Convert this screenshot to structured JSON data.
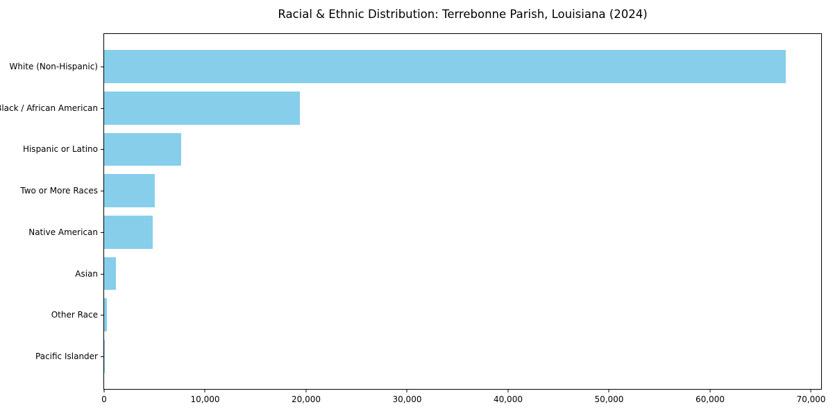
{
  "title": "Racial & Ethnic Distribution: Terrebonne Parish, Louisiana (2024)",
  "chart_data": {
    "type": "bar",
    "orientation": "horizontal",
    "title": "Racial & Ethnic Distribution: Terrebonne Parish, Louisiana (2024)",
    "xlabel": "",
    "ylabel": "",
    "categories": [
      "White (Non-Hispanic)",
      "Black / African American",
      "Hispanic or Latino",
      "Two or More Races",
      "Native American",
      "Asian",
      "Other Race",
      "Pacific Islander"
    ],
    "values": [
      67500,
      19400,
      7600,
      5000,
      4800,
      1200,
      300,
      50
    ],
    "xlim": [
      0,
      71000
    ],
    "x_ticks": [
      0,
      10000,
      20000,
      30000,
      40000,
      50000,
      60000,
      70000
    ],
    "x_tick_labels": [
      "0",
      "10,000",
      "20,000",
      "30,000",
      "40,000",
      "50,000",
      "60,000",
      "70,000"
    ],
    "bar_color": "#87CEEB",
    "grid": false,
    "legend": null
  },
  "colors": {
    "bar": "#87CEEB",
    "axis": "#000000",
    "text": "#000000",
    "background": "#ffffff"
  }
}
